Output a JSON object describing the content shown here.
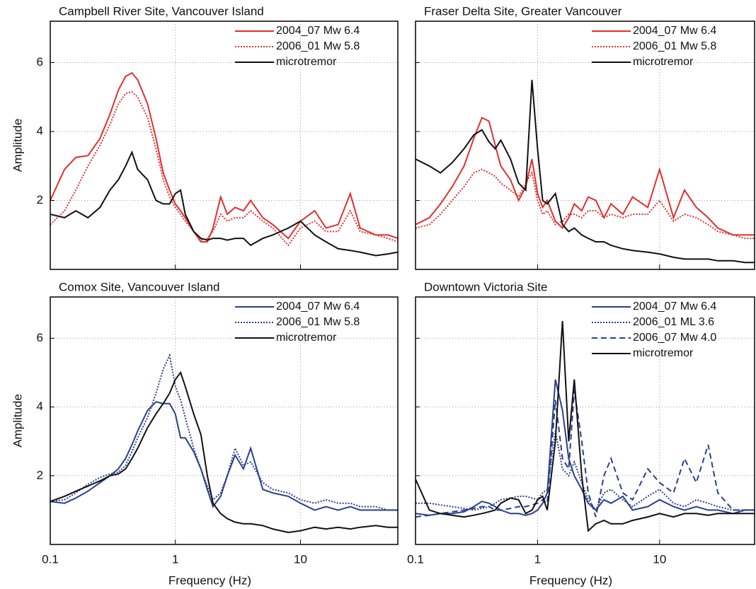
{
  "chart_data": [
    {
      "type": "line",
      "title": "Campbell River Site, Vancouver Island",
      "ylabel": "Amplitude",
      "x_log": true,
      "legend": "upper right",
      "show_xtick_labels": false,
      "show_ytick_labels": true,
      "grid": true,
      "xlim": [
        0.1,
        60
      ],
      "ylim": [
        0,
        7.2
      ],
      "xticks": [
        0.1,
        1,
        10
      ],
      "yticks": [
        2,
        4,
        6
      ],
      "x": [
        0.1,
        0.13,
        0.16,
        0.2,
        0.25,
        0.3,
        0.35,
        0.4,
        0.45,
        0.5,
        0.6,
        0.7,
        0.8,
        0.9,
        1,
        1.1,
        1.2,
        1.4,
        1.6,
        1.8,
        2,
        2.3,
        2.6,
        3,
        3.5,
        4,
        5,
        6,
        8,
        10,
        13,
        16,
        20,
        25,
        30,
        40,
        50,
        60
      ],
      "series": [
        {
          "name": "2004_07 Mw 6.4",
          "color": "#e03030",
          "dash": "solid",
          "values": [
            2.0,
            2.9,
            3.25,
            3.3,
            3.8,
            4.5,
            5.2,
            5.6,
            5.7,
            5.5,
            4.8,
            3.8,
            2.8,
            2.3,
            1.9,
            1.7,
            1.5,
            1.1,
            0.8,
            0.8,
            1.2,
            2.1,
            1.6,
            1.8,
            1.7,
            2.0,
            1.5,
            1.3,
            0.9,
            1.4,
            1.7,
            1.2,
            1.3,
            2.2,
            1.2,
            1.0,
            1.0,
            0.9
          ]
        },
        {
          "name": "2006_01 Mw 5.8",
          "color": "#e03030",
          "dash": "dotted",
          "values": [
            1.3,
            1.7,
            2.3,
            3.0,
            3.6,
            4.2,
            4.8,
            5.1,
            5.15,
            5.0,
            4.4,
            3.5,
            2.6,
            2.1,
            1.8,
            1.6,
            1.4,
            1.1,
            0.85,
            0.9,
            1.1,
            1.6,
            1.4,
            1.5,
            1.5,
            1.7,
            1.4,
            1.2,
            0.7,
            1.2,
            1.4,
            1.1,
            1.1,
            1.7,
            1.1,
            1.0,
            0.9,
            0.8
          ]
        },
        {
          "name": "microtremor",
          "color": "#111111",
          "dash": "solid",
          "values": [
            1.6,
            1.5,
            1.7,
            1.5,
            1.8,
            2.3,
            2.6,
            3.0,
            3.4,
            2.9,
            2.6,
            2.0,
            1.9,
            1.9,
            2.2,
            2.3,
            1.6,
            1.1,
            0.9,
            0.85,
            0.9,
            0.9,
            0.85,
            0.9,
            0.9,
            0.7,
            0.9,
            1.0,
            1.2,
            1.4,
            1.0,
            0.8,
            0.6,
            0.55,
            0.5,
            0.4,
            0.45,
            0.5
          ]
        }
      ]
    },
    {
      "type": "line",
      "title": "Fraser Delta Site, Greater Vancouver",
      "x_log": true,
      "legend": "upper right",
      "show_xtick_labels": false,
      "show_ytick_labels": false,
      "grid": true,
      "xlim": [
        0.1,
        60
      ],
      "ylim": [
        0,
        7.2
      ],
      "xticks": [
        0.1,
        1,
        10
      ],
      "yticks": [
        2,
        4,
        6
      ],
      "x": [
        0.1,
        0.13,
        0.16,
        0.2,
        0.25,
        0.3,
        0.35,
        0.4,
        0.45,
        0.5,
        0.6,
        0.7,
        0.8,
        0.9,
        1,
        1.1,
        1.2,
        1.4,
        1.6,
        1.8,
        2,
        2.3,
        2.6,
        3,
        3.5,
        4,
        5,
        6,
        8,
        10,
        13,
        16,
        20,
        25,
        30,
        40,
        50,
        60
      ],
      "series": [
        {
          "name": "2004_07 Mw 6.4",
          "color": "#e03030",
          "dash": "solid",
          "values": [
            1.3,
            1.5,
            1.9,
            2.4,
            3.0,
            3.8,
            4.4,
            4.3,
            3.6,
            3.0,
            2.6,
            2.0,
            2.4,
            3.2,
            2.2,
            1.8,
            2.0,
            1.4,
            1.2,
            1.5,
            1.9,
            1.7,
            2.1,
            2.0,
            1.5,
            1.9,
            1.6,
            2.1,
            1.8,
            2.9,
            1.5,
            2.3,
            1.8,
            1.5,
            1.2,
            1.0,
            1.0,
            1.0
          ]
        },
        {
          "name": "2006_01 Mw 5.8",
          "color": "#e03030",
          "dash": "dotted",
          "values": [
            1.2,
            1.3,
            1.6,
            2.0,
            2.4,
            2.8,
            2.9,
            2.8,
            2.7,
            2.5,
            2.3,
            2.1,
            2.5,
            2.8,
            2.0,
            1.6,
            1.7,
            1.3,
            1.4,
            1.6,
            1.6,
            1.5,
            1.7,
            1.7,
            1.5,
            1.6,
            1.5,
            1.6,
            1.6,
            2.0,
            1.4,
            1.6,
            1.5,
            1.3,
            1.1,
            1.0,
            0.9,
            0.9
          ]
        },
        {
          "name": "microtremor",
          "color": "#111111",
          "dash": "solid",
          "values": [
            3.2,
            3.0,
            2.8,
            3.1,
            3.5,
            3.9,
            4.05,
            3.7,
            3.5,
            3.75,
            3.2,
            2.5,
            2.3,
            5.5,
            3.5,
            2.0,
            1.9,
            2.2,
            1.3,
            1.1,
            1.2,
            1.0,
            0.9,
            0.8,
            0.8,
            0.7,
            0.6,
            0.55,
            0.5,
            0.45,
            0.35,
            0.3,
            0.3,
            0.3,
            0.25,
            0.25,
            0.2,
            0.2
          ]
        }
      ]
    },
    {
      "type": "line",
      "title": "Comox Site, Vancouver Island",
      "ylabel": "Amplitude",
      "xlabel": "Frequency (Hz)",
      "x_log": true,
      "legend": "upper right",
      "show_xtick_labels": true,
      "show_ytick_labels": true,
      "grid": true,
      "xlim": [
        0.1,
        60
      ],
      "ylim": [
        0,
        7.2
      ],
      "xticks": [
        0.1,
        1,
        10
      ],
      "yticks": [
        2,
        4,
        6
      ],
      "x": [
        0.1,
        0.13,
        0.16,
        0.2,
        0.25,
        0.3,
        0.35,
        0.4,
        0.45,
        0.5,
        0.6,
        0.7,
        0.8,
        0.9,
        1,
        1.1,
        1.2,
        1.4,
        1.6,
        1.8,
        2,
        2.3,
        2.6,
        3,
        3.5,
        4,
        5,
        6,
        8,
        10,
        13,
        16,
        20,
        25,
        30,
        40,
        50,
        60
      ],
      "series": [
        {
          "name": "2004_07 Mw 6.4",
          "color": "#2b3f8f",
          "dash": "solid",
          "values": [
            1.25,
            1.2,
            1.35,
            1.55,
            1.8,
            2.0,
            2.2,
            2.5,
            2.9,
            3.3,
            3.9,
            4.15,
            4.1,
            4.1,
            3.8,
            3.1,
            3.1,
            2.7,
            2.2,
            1.6,
            1.1,
            1.4,
            2.0,
            2.6,
            2.2,
            2.8,
            1.6,
            1.5,
            1.4,
            1.2,
            1.0,
            1.1,
            1.0,
            1.1,
            1.0,
            1.0,
            1.0,
            1.0
          ]
        },
        {
          "name": "2006_01 Mw 5.8",
          "color": "#2b3f8f",
          "dash": "dotted",
          "values": [
            1.25,
            1.3,
            1.5,
            1.75,
            1.95,
            2.05,
            2.1,
            2.3,
            2.7,
            3.1,
            3.7,
            4.4,
            5.1,
            5.5,
            4.6,
            4.2,
            3.7,
            2.8,
            2.2,
            1.7,
            1.3,
            1.5,
            2.0,
            2.8,
            2.3,
            2.4,
            1.8,
            1.6,
            1.5,
            1.3,
            1.2,
            1.3,
            1.2,
            1.2,
            1.1,
            1.1,
            1.0,
            1.0
          ]
        },
        {
          "name": "microtremor",
          "color": "#111111",
          "dash": "solid",
          "values": [
            1.25,
            1.4,
            1.55,
            1.7,
            1.85,
            2.0,
            2.05,
            2.2,
            2.5,
            2.8,
            3.4,
            3.8,
            4.1,
            4.4,
            4.8,
            5.0,
            4.6,
            3.8,
            3.2,
            2.0,
            1.2,
            0.9,
            0.75,
            0.65,
            0.6,
            0.6,
            0.55,
            0.45,
            0.35,
            0.4,
            0.5,
            0.45,
            0.5,
            0.45,
            0.5,
            0.55,
            0.5,
            0.5
          ]
        }
      ]
    },
    {
      "type": "line",
      "title": "Downtown Victoria Site",
      "xlabel": "Frequency (Hz)",
      "x_log": true,
      "legend": "upper right",
      "show_xtick_labels": true,
      "show_ytick_labels": false,
      "grid": true,
      "xlim": [
        0.1,
        60
      ],
      "ylim": [
        0,
        7.2
      ],
      "xticks": [
        0.1,
        1,
        10
      ],
      "yticks": [
        2,
        4,
        6
      ],
      "x": [
        0.1,
        0.13,
        0.16,
        0.2,
        0.25,
        0.3,
        0.35,
        0.4,
        0.45,
        0.5,
        0.6,
        0.7,
        0.8,
        0.9,
        1,
        1.1,
        1.2,
        1.4,
        1.6,
        1.8,
        2,
        2.3,
        2.6,
        3,
        3.5,
        4,
        5,
        6,
        8,
        10,
        13,
        16,
        20,
        25,
        30,
        40,
        50,
        60
      ],
      "series": [
        {
          "name": "2004_07 Mw 6.4",
          "color": "#2b3f8f",
          "dash": "solid",
          "values": [
            0.9,
            0.85,
            0.9,
            0.9,
            0.95,
            1.1,
            1.25,
            1.2,
            1.1,
            1.0,
            0.9,
            0.9,
            0.85,
            0.9,
            1.0,
            1.2,
            1.5,
            4.8,
            3.9,
            2.5,
            2.0,
            1.6,
            1.2,
            1.0,
            1.3,
            1.2,
            1.4,
            1.0,
            1.1,
            1.3,
            1.1,
            1.0,
            1.1,
            1.0,
            1.0,
            0.9,
            1.0,
            1.0
          ]
        },
        {
          "name": "2006_01 ML 3.6",
          "color": "#2b3f8f",
          "dash": "dotted",
          "values": [
            1.2,
            1.2,
            1.15,
            1.1,
            1.05,
            1.0,
            1.05,
            1.1,
            1.2,
            1.3,
            1.35,
            1.4,
            1.4,
            1.35,
            1.3,
            1.5,
            1.6,
            3.3,
            2.2,
            2.0,
            2.4,
            1.8,
            1.3,
            1.0,
            1.5,
            1.6,
            1.3,
            1.1,
            1.4,
            1.6,
            1.2,
            1.1,
            1.3,
            1.2,
            1.1,
            1.0,
            1.0,
            1.0
          ]
        },
        {
          "name": "2006_07 Mw 4.0",
          "color": "#2b3f8f",
          "dash": "dashed",
          "values": [
            0.8,
            0.85,
            0.9,
            0.95,
            1.0,
            1.05,
            1.1,
            1.1,
            1.0,
            1.0,
            1.05,
            1.1,
            1.1,
            1.15,
            1.2,
            1.3,
            1.2,
            4.2,
            2.5,
            2.2,
            4.5,
            3.0,
            1.5,
            0.8,
            2.0,
            2.5,
            1.5,
            1.3,
            2.2,
            1.8,
            1.5,
            2.5,
            1.8,
            2.9,
            1.5,
            1.0,
            1.0,
            1.0
          ]
        },
        {
          "name": "microtremor",
          "color": "#111111",
          "dash": "solid",
          "values": [
            1.9,
            1.0,
            0.9,
            0.85,
            0.8,
            0.85,
            0.9,
            0.95,
            1.0,
            1.2,
            1.35,
            1.3,
            0.9,
            1.0,
            1.3,
            1.4,
            1.0,
            3.0,
            6.5,
            3.0,
            4.8,
            2.0,
            0.4,
            0.6,
            0.7,
            0.6,
            0.6,
            0.7,
            0.8,
            0.9,
            0.8,
            0.9,
            0.9,
            0.85,
            0.9,
            0.9,
            0.9,
            0.9
          ]
        }
      ]
    }
  ]
}
